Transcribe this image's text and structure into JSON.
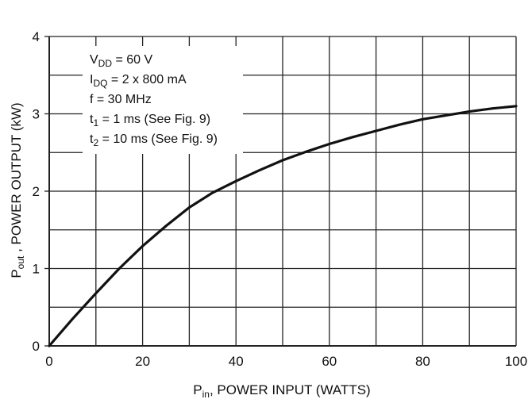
{
  "chart_data": {
    "type": "line",
    "title": "",
    "xlabel": {
      "main": "P",
      "sub": "in",
      "rest": ", POWER INPUT (WATTS)"
    },
    "ylabel": {
      "main": "P",
      "sub": "out",
      "rest": " , POWER OUTPUT (kW)"
    },
    "xlim": [
      0,
      100
    ],
    "ylim": [
      0,
      4
    ],
    "x_ticks": [
      0,
      20,
      40,
      60,
      80,
      100
    ],
    "x_tick_labels": [
      "0",
      "20",
      "40",
      "60",
      "80",
      "100"
    ],
    "y_ticks": [
      0,
      1,
      2,
      3,
      4
    ],
    "y_tick_labels": [
      "0",
      "1",
      "2",
      "3",
      "4"
    ],
    "x_grid": [
      0,
      10,
      20,
      30,
      40,
      50,
      60,
      70,
      80,
      90,
      100
    ],
    "y_grid": [
      0,
      0.5,
      1,
      1.5,
      2,
      2.5,
      3,
      3.5,
      4
    ],
    "grid": true,
    "legend": "none",
    "series": [
      {
        "x": [
          0,
          5,
          10,
          15,
          20,
          25,
          30,
          35,
          40,
          45,
          50,
          55,
          60,
          65,
          70,
          75,
          80,
          85,
          90,
          95,
          100
        ],
        "y": [
          0,
          0.35,
          0.68,
          1.0,
          1.29,
          1.55,
          1.79,
          1.98,
          2.13,
          2.27,
          2.4,
          2.51,
          2.61,
          2.7,
          2.78,
          2.86,
          2.93,
          2.98,
          3.03,
          3.07,
          3.1
        ]
      }
    ],
    "annotations": [
      {
        "main": "V",
        "sub": "DD",
        "rest": " = 60 V"
      },
      {
        "main": "I",
        "sub": "DQ",
        "rest": " = 2 x 800 mA"
      },
      {
        "main": "f = 30 MHz",
        "sub": "",
        "rest": ""
      },
      {
        "main": "t",
        "sub": "1",
        "rest": " = 1 ms (See Fig. 9)"
      },
      {
        "main": "t",
        "sub": "2",
        "rest": " = 10 ms (See Fig. 9)"
      }
    ]
  }
}
